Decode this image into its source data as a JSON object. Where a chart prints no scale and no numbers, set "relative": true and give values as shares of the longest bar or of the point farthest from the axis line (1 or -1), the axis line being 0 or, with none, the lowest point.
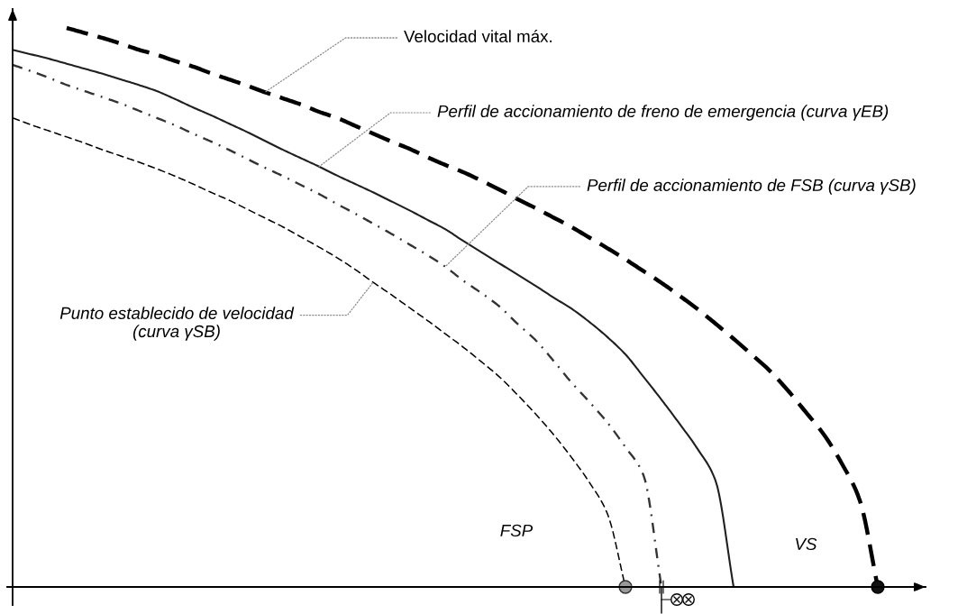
{
  "chart_data": {
    "type": "line",
    "relative": true,
    "categories": [
      null,
      null,
      null,
      null,
      null,
      null,
      null,
      null,
      null,
      null,
      null,
      null,
      null,
      null,
      null,
      null,
      null,
      null,
      null,
      null,
      null,
      null,
      null,
      null,
      null,
      null,
      null,
      null,
      null,
      null,
      null,
      null,
      null,
      null,
      null,
      null,
      null,
      null,
      null,
      null,
      null,
      null,
      null,
      null,
      null,
      null,
      null,
      null,
      null
    ],
    "series": [
      {
        "color": "#000000",
        "line_style": "dashed",
        "values": [
          null,
          null,
          null,
          1.0,
          0.991,
          0.982,
          0.972,
          0.961,
          0.952,
          0.941,
          0.931,
          0.919,
          0.908,
          0.897,
          0.885,
          0.874,
          0.863,
          0.85,
          0.839,
          0.825,
          0.811,
          0.797,
          0.784,
          0.769,
          0.755,
          0.742,
          0.727,
          0.711,
          0.694,
          0.678,
          0.661,
          0.644,
          0.625,
          0.606,
          0.586,
          0.565,
          0.544,
          0.521,
          0.497,
          0.471,
          0.444,
          0.416,
          0.387,
          0.352,
          0.313,
          0.273,
          0.221,
          0.155,
          0
        ]
      },
      {
        "color": "#1f1f1f",
        "line_style": "solid",
        "values": [
          0.961,
          0.953,
          0.945,
          0.936,
          0.927,
          0.918,
          0.908,
          0.898,
          0.887,
          0.873,
          0.858,
          0.844,
          0.829,
          0.814,
          0.798,
          0.782,
          0.767,
          0.752,
          0.736,
          0.721,
          0.706,
          0.69,
          0.674,
          0.657,
          0.64,
          0.619,
          0.599,
          0.579,
          0.559,
          0.539,
          0.518,
          0.498,
          0.474,
          0.447,
          0.416,
          0.376,
          0.335,
          0.292,
          0.247,
          0.19,
          0,
          null,
          null,
          null,
          null,
          null,
          null,
          null,
          null
        ]
      },
      {
        "color": "#333333",
        "line_style": "dashdot",
        "values": [
          0.934,
          0.923,
          0.911,
          0.898,
          0.887,
          0.876,
          0.865,
          0.852,
          0.839,
          0.826,
          0.811,
          0.797,
          0.782,
          0.766,
          0.75,
          0.735,
          0.719,
          0.703,
          0.685,
          0.668,
          0.65,
          0.632,
          0.613,
          0.594,
          0.573,
          0.548,
          0.526,
          0.502,
          0.471,
          0.442,
          0.405,
          0.366,
          0.331,
          0.294,
          0.25,
          0.2,
          0,
          null,
          null,
          null,
          null,
          null,
          null,
          null,
          null,
          null,
          null,
          null,
          null
        ]
      },
      {
        "color": "#000000",
        "line_style": "dashed",
        "values": [
          0.839,
          0.827,
          0.816,
          0.805,
          0.794,
          0.782,
          0.771,
          0.76,
          0.748,
          0.735,
          0.721,
          0.706,
          0.692,
          0.676,
          0.66,
          0.644,
          0.626,
          0.608,
          0.589,
          0.568,
          0.545,
          0.523,
          0.5,
          0.477,
          0.453,
          0.429,
          0.403,
          0.376,
          0.344,
          0.31,
          0.273,
          0.232,
          0.187,
          0.131,
          0,
          null,
          null,
          null,
          null,
          null,
          null,
          null,
          null,
          null,
          null,
          null,
          null,
          null,
          null
        ]
      }
    ],
    "annotations": [
      "Velocidad vital máx.",
      "Perfil de accionamiento de freno de emergencia (curva γEB)",
      "Perfil de accionamiento de FSB (curva γSB)",
      "Punto establecido de velocidad\n(curva γSB)",
      "FSP",
      "VS"
    ]
  }
}
